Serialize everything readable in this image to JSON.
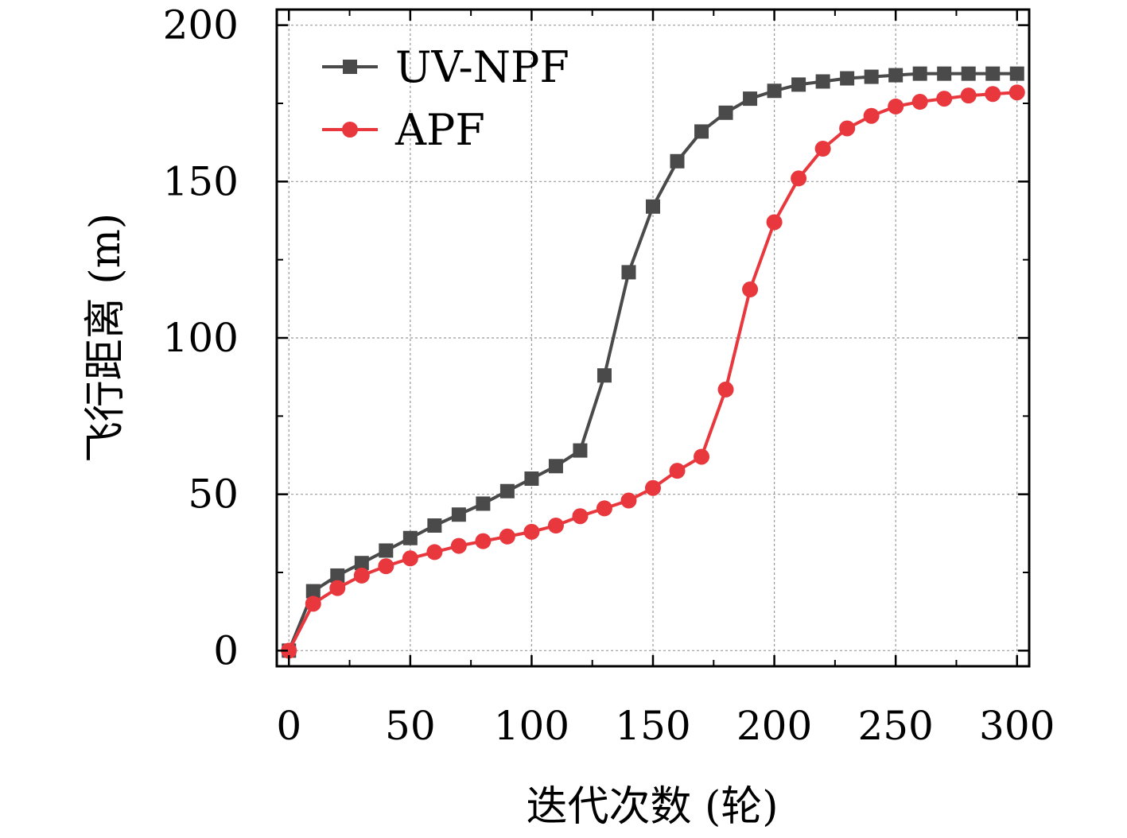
{
  "chart_data": {
    "type": "line",
    "title": "",
    "xlabel": "迭代次数 (轮)",
    "ylabel": "飞行距离 (m)",
    "xlim": [
      -5,
      305
    ],
    "ylim": [
      -5,
      205
    ],
    "xticks": [
      0,
      50,
      100,
      150,
      200,
      250,
      300
    ],
    "yticks": [
      0,
      50,
      100,
      150,
      200
    ],
    "xtick_labels": [
      "0",
      "50",
      "100",
      "150",
      "200",
      "250",
      "300"
    ],
    "ytick_labels": [
      "0",
      "50",
      "100",
      "150",
      "200"
    ],
    "grid": true,
    "legend_position": "top-left",
    "x": [
      0,
      10,
      20,
      30,
      40,
      50,
      60,
      70,
      80,
      90,
      100,
      110,
      120,
      130,
      140,
      150,
      160,
      170,
      180,
      190,
      200,
      210,
      220,
      230,
      240,
      250,
      260,
      270,
      280,
      290,
      300
    ],
    "series": [
      {
        "name": "UV-NPF",
        "color": "#4a4a4a",
        "marker": "square",
        "values": [
          0,
          19,
          24,
          28,
          32,
          36,
          40,
          43.5,
          47,
          51,
          55,
          59,
          64,
          88,
          121,
          142,
          156.5,
          166,
          172,
          176.5,
          179,
          181,
          182,
          183,
          183.5,
          184,
          184.5,
          184.5,
          184.5,
          184.5,
          184.5
        ]
      },
      {
        "name": "APF",
        "color": "#e8383d",
        "marker": "circle",
        "values": [
          0,
          15,
          20,
          24,
          27,
          29.5,
          31.5,
          33.5,
          35,
          36.5,
          38,
          40,
          43,
          45.5,
          48,
          52,
          57.5,
          62,
          83.5,
          115.5,
          137,
          151,
          160.5,
          167,
          171,
          174,
          175.5,
          176.5,
          177.5,
          178,
          178.5
        ]
      }
    ]
  }
}
